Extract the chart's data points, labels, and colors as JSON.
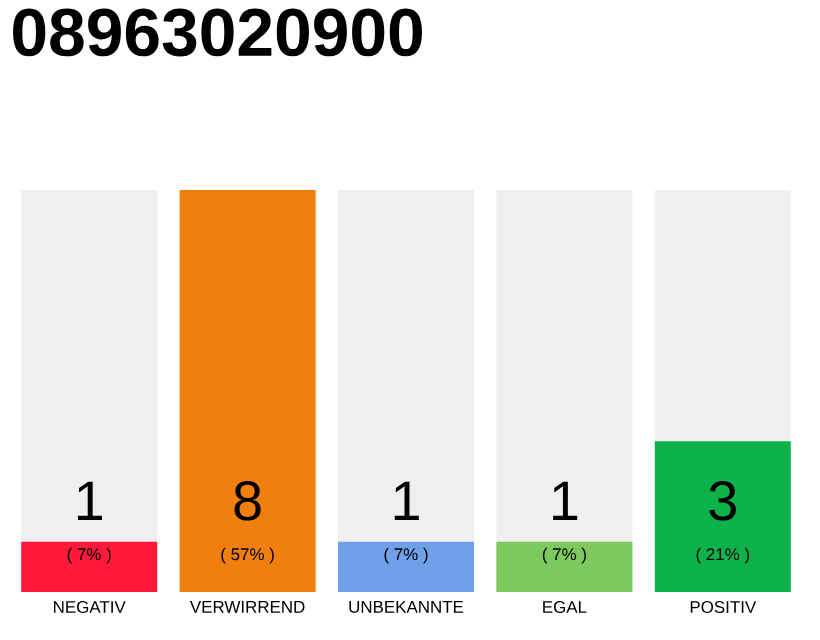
{
  "chart_data": {
    "type": "bar",
    "title": "08963020900",
    "categories": [
      "NEGATIV",
      "VERWIRREND",
      "UNBEKANNTE",
      "EGAL",
      "POSITIV"
    ],
    "values": [
      1,
      8,
      1,
      1,
      3
    ],
    "colors": [
      "#ff1a3c",
      "#f07f0e",
      "#6fa0e8",
      "#7dc95e",
      "#0db34a"
    ],
    "ylim": [
      0,
      8
    ],
    "data_labels": true,
    "annotations": [
      "( 7% )",
      "( 57% )",
      "( 7% )",
      "( 7% )",
      "( 21% )"
    ]
  }
}
